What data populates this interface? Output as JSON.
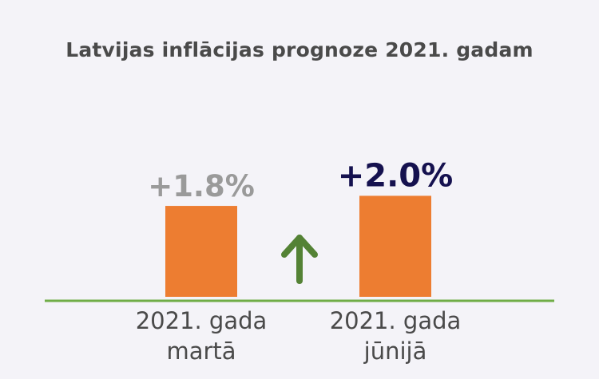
{
  "chart_data": {
    "type": "bar",
    "title": "Latvijas inflācijas prognoze 2021. gadam",
    "categories": [
      [
        "2021. gada",
        "martā"
      ],
      [
        "2021. gada",
        "jūnijā"
      ]
    ],
    "values": [
      1.8,
      2.0
    ],
    "value_labels": [
      "+1.8%",
      "+2.0%"
    ],
    "bar_color": "#ed7d31",
    "value_label_colors": [
      "#9a9a9a",
      "#15114f"
    ],
    "axis_color": "#70ad47",
    "arrow_color": "#548235",
    "arrow_direction": "up",
    "xlabel": "",
    "ylabel": "",
    "grid": false
  }
}
